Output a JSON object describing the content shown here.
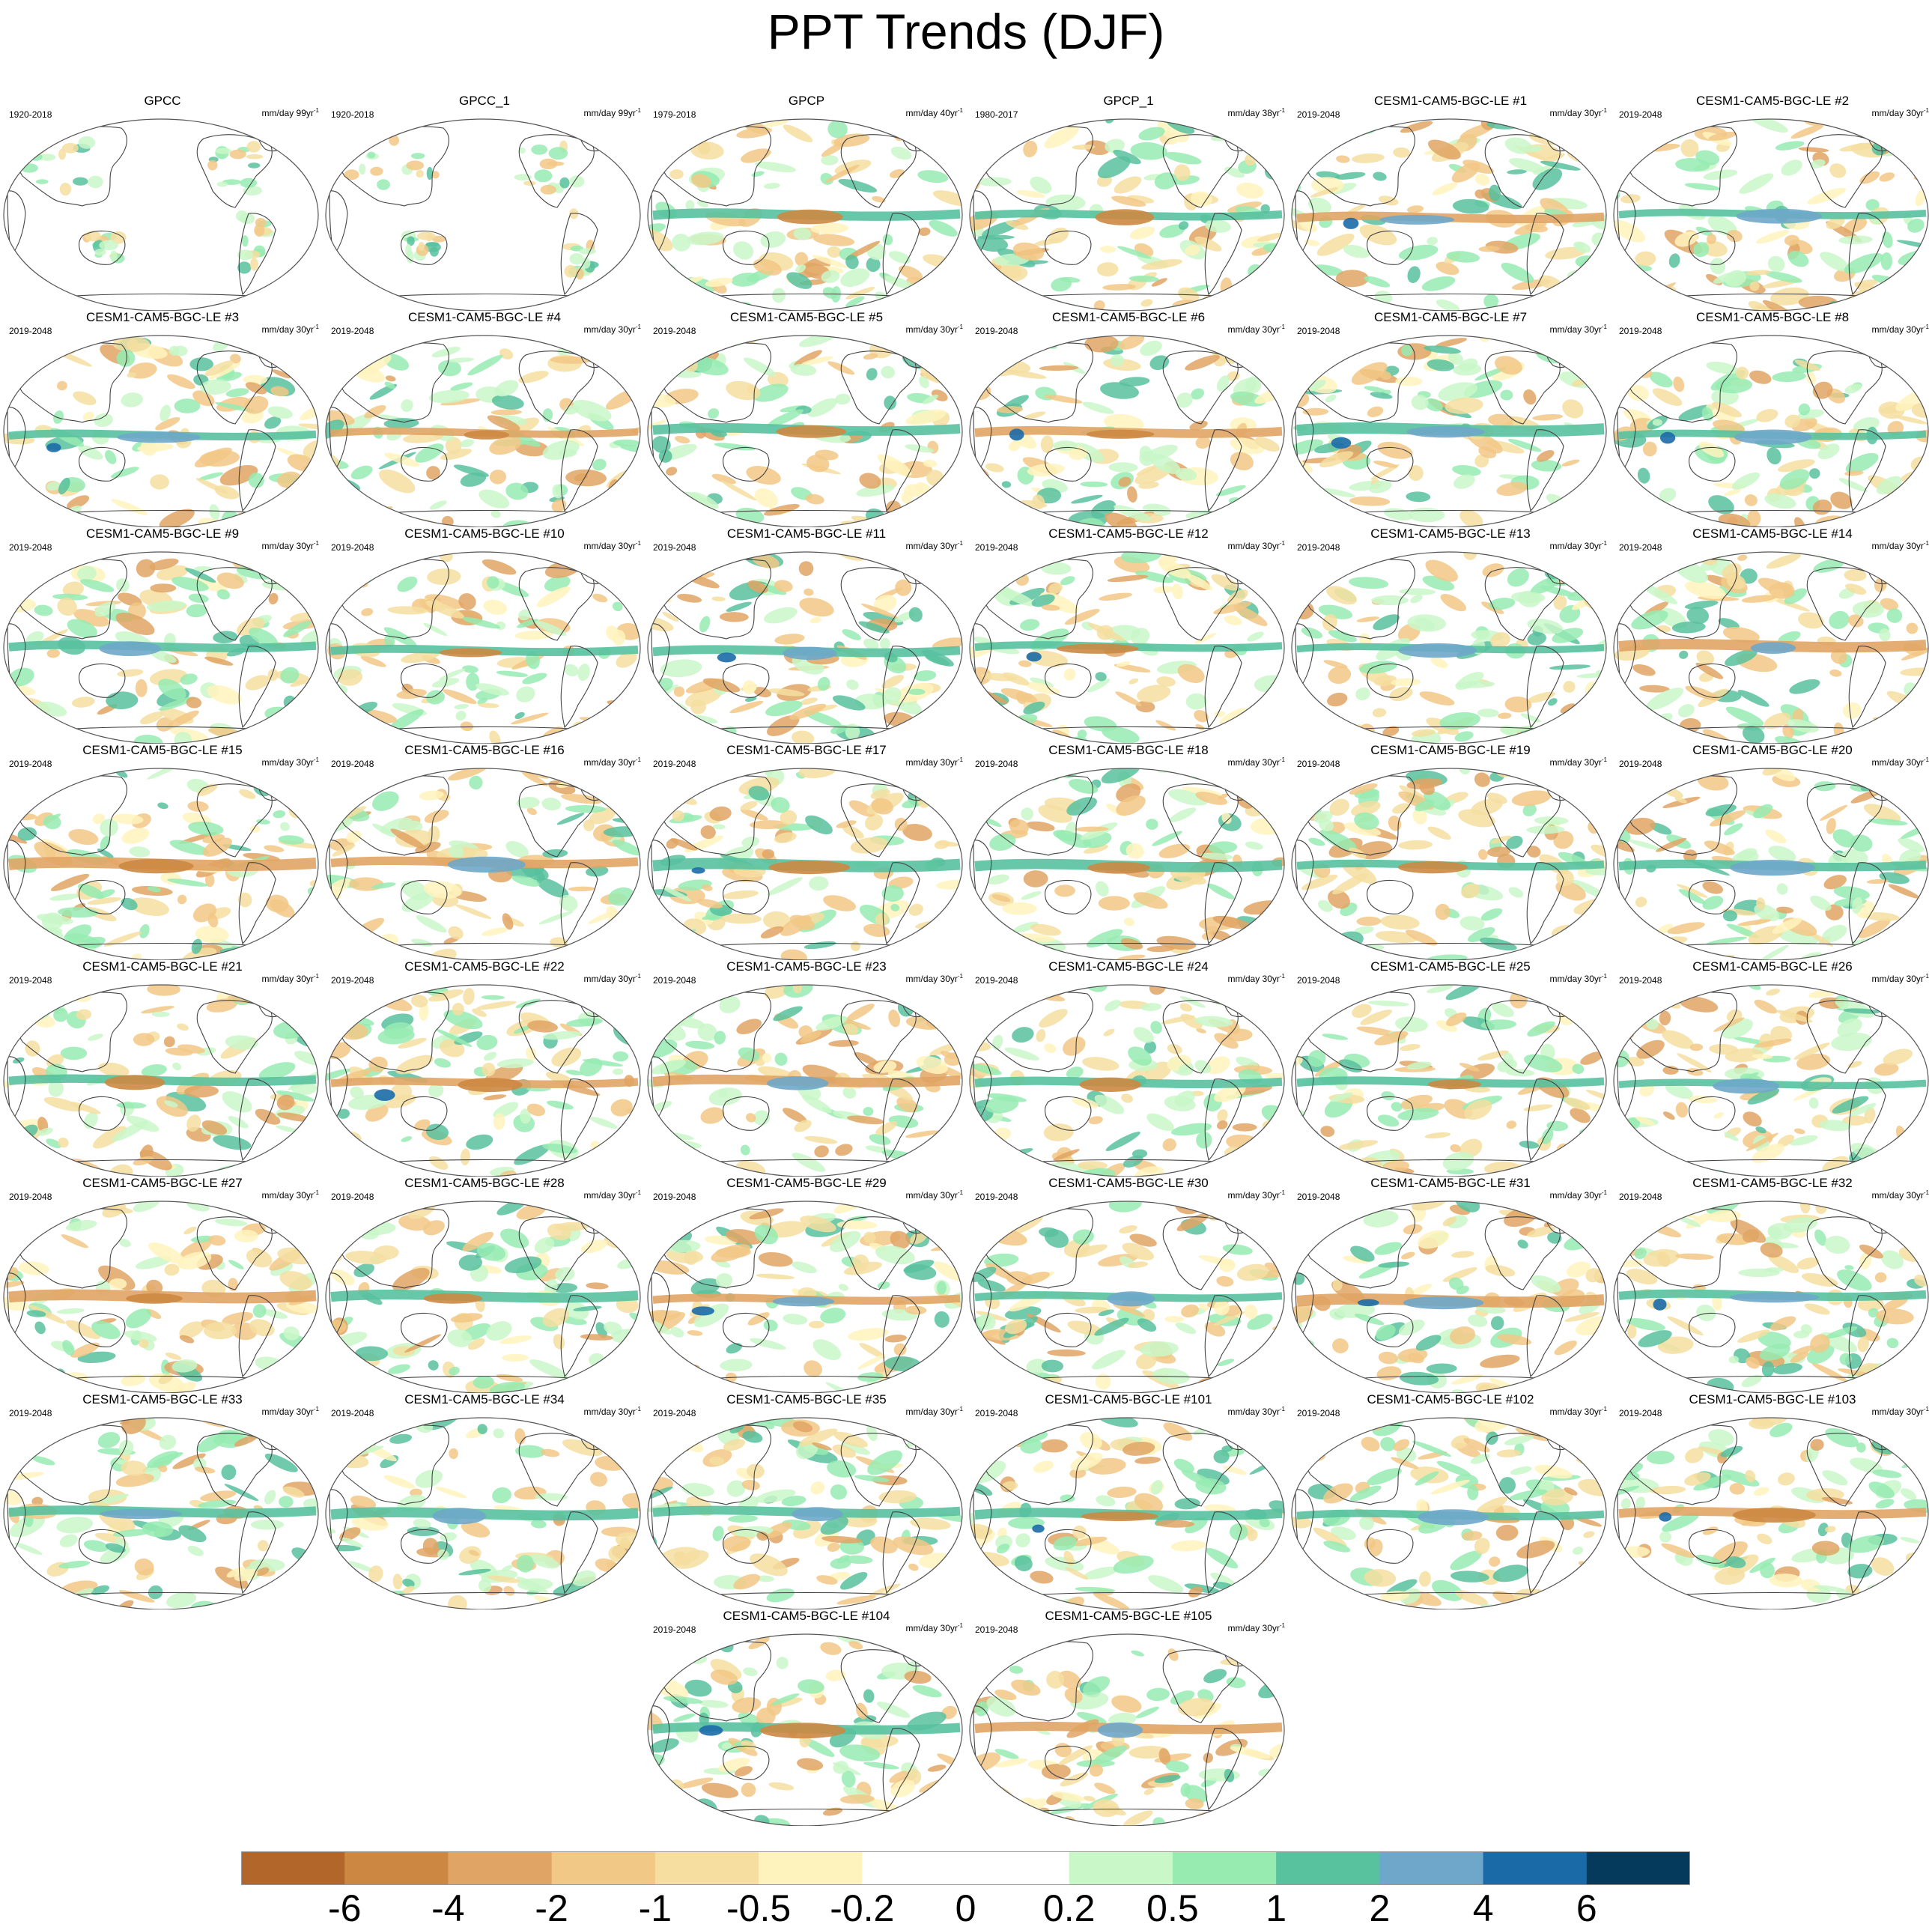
{
  "title": "PPT Trends (DJF)",
  "units_prefix": "mm/day ",
  "units_suffix_sup": "-1",
  "chart_data": {
    "type": "map-grid",
    "title": "PPT Trends (DJF)",
    "variable": "precipitation trend",
    "season": "DJF",
    "panels": [
      {
        "name": "GPCC",
        "years": "1920-2018",
        "per": "99yr",
        "kind": "obs-land"
      },
      {
        "name": "GPCC_1",
        "years": "1920-2018",
        "per": "99yr",
        "kind": "obs-land"
      },
      {
        "name": "GPCP",
        "years": "1979-2018",
        "per": "40yr",
        "kind": "global"
      },
      {
        "name": "GPCP_1",
        "years": "1980-2017",
        "per": "38yr",
        "kind": "global"
      },
      {
        "name": "CESM1-CAM5-BGC-LE #1",
        "years": "2019-2048",
        "per": "30yr",
        "kind": "global"
      },
      {
        "name": "CESM1-CAM5-BGC-LE #2",
        "years": "2019-2048",
        "per": "30yr",
        "kind": "global"
      },
      {
        "name": "CESM1-CAM5-BGC-LE #3",
        "years": "2019-2048",
        "per": "30yr",
        "kind": "global"
      },
      {
        "name": "CESM1-CAM5-BGC-LE #4",
        "years": "2019-2048",
        "per": "30yr",
        "kind": "global"
      },
      {
        "name": "CESM1-CAM5-BGC-LE #5",
        "years": "2019-2048",
        "per": "30yr",
        "kind": "global"
      },
      {
        "name": "CESM1-CAM5-BGC-LE #6",
        "years": "2019-2048",
        "per": "30yr",
        "kind": "global"
      },
      {
        "name": "CESM1-CAM5-BGC-LE #7",
        "years": "2019-2048",
        "per": "30yr",
        "kind": "global"
      },
      {
        "name": "CESM1-CAM5-BGC-LE #8",
        "years": "2019-2048",
        "per": "30yr",
        "kind": "global"
      },
      {
        "name": "CESM1-CAM5-BGC-LE #9",
        "years": "2019-2048",
        "per": "30yr",
        "kind": "global"
      },
      {
        "name": "CESM1-CAM5-BGC-LE #10",
        "years": "2019-2048",
        "per": "30yr",
        "kind": "global"
      },
      {
        "name": "CESM1-CAM5-BGC-LE #11",
        "years": "2019-2048",
        "per": "30yr",
        "kind": "global"
      },
      {
        "name": "CESM1-CAM5-BGC-LE #12",
        "years": "2019-2048",
        "per": "30yr",
        "kind": "global"
      },
      {
        "name": "CESM1-CAM5-BGC-LE #13",
        "years": "2019-2048",
        "per": "30yr",
        "kind": "global"
      },
      {
        "name": "CESM1-CAM5-BGC-LE #14",
        "years": "2019-2048",
        "per": "30yr",
        "kind": "global"
      },
      {
        "name": "CESM1-CAM5-BGC-LE #15",
        "years": "2019-2048",
        "per": "30yr",
        "kind": "global"
      },
      {
        "name": "CESM1-CAM5-BGC-LE #16",
        "years": "2019-2048",
        "per": "30yr",
        "kind": "global"
      },
      {
        "name": "CESM1-CAM5-BGC-LE #17",
        "years": "2019-2048",
        "per": "30yr",
        "kind": "global"
      },
      {
        "name": "CESM1-CAM5-BGC-LE #18",
        "years": "2019-2048",
        "per": "30yr",
        "kind": "global"
      },
      {
        "name": "CESM1-CAM5-BGC-LE #19",
        "years": "2019-2048",
        "per": "30yr",
        "kind": "global"
      },
      {
        "name": "CESM1-CAM5-BGC-LE #20",
        "years": "2019-2048",
        "per": "30yr",
        "kind": "global"
      },
      {
        "name": "CESM1-CAM5-BGC-LE #21",
        "years": "2019-2048",
        "per": "30yr",
        "kind": "global"
      },
      {
        "name": "CESM1-CAM5-BGC-LE #22",
        "years": "2019-2048",
        "per": "30yr",
        "kind": "global"
      },
      {
        "name": "CESM1-CAM5-BGC-LE #23",
        "years": "2019-2048",
        "per": "30yr",
        "kind": "global"
      },
      {
        "name": "CESM1-CAM5-BGC-LE #24",
        "years": "2019-2048",
        "per": "30yr",
        "kind": "global"
      },
      {
        "name": "CESM1-CAM5-BGC-LE #25",
        "years": "2019-2048",
        "per": "30yr",
        "kind": "global"
      },
      {
        "name": "CESM1-CAM5-BGC-LE #26",
        "years": "2019-2048",
        "per": "30yr",
        "kind": "global"
      },
      {
        "name": "CESM1-CAM5-BGC-LE #27",
        "years": "2019-2048",
        "per": "30yr",
        "kind": "global"
      },
      {
        "name": "CESM1-CAM5-BGC-LE #28",
        "years": "2019-2048",
        "per": "30yr",
        "kind": "global"
      },
      {
        "name": "CESM1-CAM5-BGC-LE #29",
        "years": "2019-2048",
        "per": "30yr",
        "kind": "global"
      },
      {
        "name": "CESM1-CAM5-BGC-LE #30",
        "years": "2019-2048",
        "per": "30yr",
        "kind": "global"
      },
      {
        "name": "CESM1-CAM5-BGC-LE #31",
        "years": "2019-2048",
        "per": "30yr",
        "kind": "global"
      },
      {
        "name": "CESM1-CAM5-BGC-LE #32",
        "years": "2019-2048",
        "per": "30yr",
        "kind": "global"
      },
      {
        "name": "CESM1-CAM5-BGC-LE #33",
        "years": "2019-2048",
        "per": "30yr",
        "kind": "global"
      },
      {
        "name": "CESM1-CAM5-BGC-LE #34",
        "years": "2019-2048",
        "per": "30yr",
        "kind": "global"
      },
      {
        "name": "CESM1-CAM5-BGC-LE #35",
        "years": "2019-2048",
        "per": "30yr",
        "kind": "global"
      },
      {
        "name": "CESM1-CAM5-BGC-LE #101",
        "years": "2019-2048",
        "per": "30yr",
        "kind": "global"
      },
      {
        "name": "CESM1-CAM5-BGC-LE #102",
        "years": "2019-2048",
        "per": "30yr",
        "kind": "global"
      },
      {
        "name": "CESM1-CAM5-BGC-LE #103",
        "years": "2019-2048",
        "per": "30yr",
        "kind": "global"
      },
      {
        "name": "CESM1-CAM5-BGC-LE #104",
        "years": "2019-2048",
        "per": "30yr",
        "kind": "global"
      },
      {
        "name": "CESM1-CAM5-BGC-LE #105",
        "years": "2019-2048",
        "per": "30yr",
        "kind": "global"
      }
    ],
    "colorbar": {
      "colors": [
        "#b2662a",
        "#cc8843",
        "#e0a464",
        "#f2c886",
        "#f5dea0",
        "#fff3bd",
        "#ffffff",
        "#ffffff",
        "#c9f7c8",
        "#97ebb1",
        "#58c19e",
        "#6ea7c9",
        "#1b6aa8",
        "#063a5c"
      ],
      "labels": [
        "-6",
        "-4",
        "-2",
        "-1",
        "-0.5",
        "-0.2",
        "0",
        "0.2",
        "0.5",
        "1",
        "2",
        "4",
        "6"
      ]
    }
  }
}
